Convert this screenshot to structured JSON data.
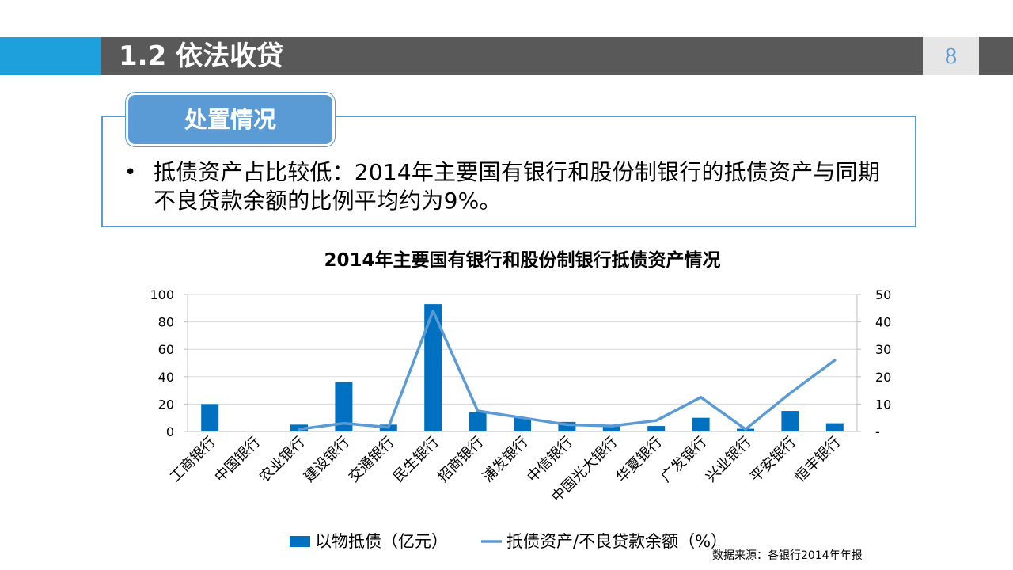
{
  "header": {
    "title": "1.2  依法收贷",
    "page_number": "8"
  },
  "callout": {
    "tab_label": "处置情况",
    "bullet_text": "抵债资产占比较低：2014年主要国有银行和股份制银行的抵债资产与同期不良贷款余额的比例平均约为9%。"
  },
  "chart_data": {
    "type": "bar",
    "title": "2014年主要国有银行和股份制银行抵债资产情况",
    "categories": [
      "工商银行",
      "中国银行",
      "农业银行",
      "建设银行",
      "交通银行",
      "民生银行",
      "招商银行",
      "浦发银行",
      "中信银行",
      "中国光大银行",
      "华夏银行",
      "广发银行",
      "兴业银行",
      "平安银行",
      "恒丰银行"
    ],
    "left_axis": {
      "ylim": [
        0,
        100
      ],
      "ticks": [
        "0",
        "20",
        "40",
        "60",
        "80",
        "100"
      ]
    },
    "right_axis": {
      "ylim": [
        0,
        50
      ],
      "ticks": [
        "-",
        "10",
        "20",
        "30",
        "40",
        "50"
      ]
    },
    "series": [
      {
        "name": "以物抵债（亿元）",
        "type": "bar",
        "axis": "left",
        "color": "#0070c0",
        "values": [
          20,
          0,
          5,
          36,
          5,
          93,
          14,
          10,
          7,
          4,
          4,
          10,
          2,
          15,
          6
        ]
      },
      {
        "name": "抵债资产/不良贷款余额（%）",
        "type": "line",
        "axis": "right",
        "color": "#5b9bd5",
        "values": [
          null,
          null,
          0.8,
          3,
          1.5,
          44,
          7.5,
          5,
          2.5,
          2,
          4,
          12.5,
          0.8,
          14,
          26
        ]
      }
    ],
    "grid": true,
    "legend": "bottom"
  },
  "source_note": "数据来源：各银行2014年年报"
}
